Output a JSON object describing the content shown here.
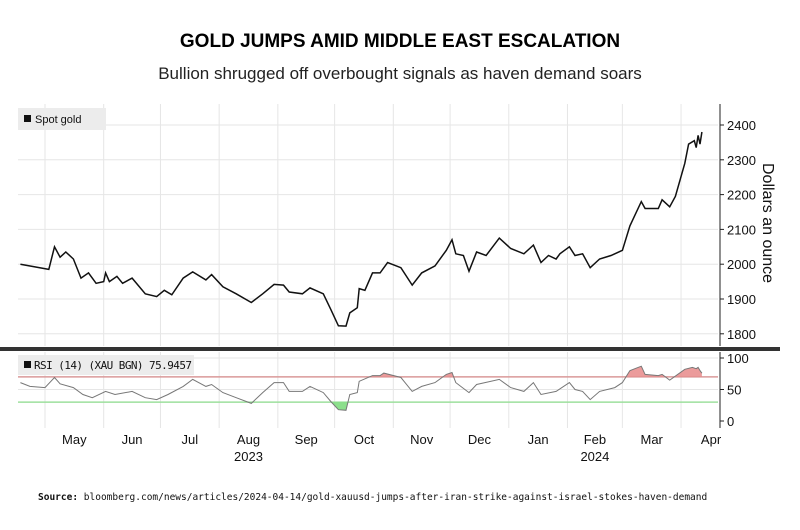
{
  "title": "GOLD JUMPS AMID MIDDLE EAST ESCALATION",
  "subtitle": "Bullion shrugged off overbought signals as haven demand soars",
  "source_label": "Source:",
  "source_text": "bloomberg.com/news/articles/2024-04-14/gold-xauusd-jumps-after-iran-strike-against-israel-stokes-haven-demand",
  "colors": {
    "line": "#111111",
    "rsi_line": "#777777",
    "overbought": "#e88a8a",
    "oversold": "#7fdc7f",
    "grid": "#e6e6e6"
  },
  "chart_data": [
    {
      "type": "line",
      "legend": "Spot gold",
      "legend_placement": "top-left",
      "ylabel": "Dollars an ounce",
      "ylim": [
        1770,
        2460
      ],
      "yticks": [
        1800,
        1900,
        2000,
        2100,
        2200,
        2300,
        2400
      ],
      "grid": true,
      "series": [
        {
          "name": "Spot gold",
          "points": [
            [
              "2023-04-18",
              2000
            ],
            [
              "2023-05-03",
              1985
            ],
            [
              "2023-05-06",
              2050
            ],
            [
              "2023-05-09",
              2020
            ],
            [
              "2023-05-12",
              2035
            ],
            [
              "2023-05-16",
              2015
            ],
            [
              "2023-05-20",
              1960
            ],
            [
              "2023-05-24",
              1975
            ],
            [
              "2023-05-28",
              1945
            ],
            [
              "2023-06-01",
              1950
            ],
            [
              "2023-06-02",
              1975
            ],
            [
              "2023-06-04",
              1950
            ],
            [
              "2023-06-08",
              1965
            ],
            [
              "2023-06-11",
              1945
            ],
            [
              "2023-06-16",
              1960
            ],
            [
              "2023-06-23",
              1915
            ],
            [
              "2023-06-29",
              1907
            ],
            [
              "2023-07-03",
              1925
            ],
            [
              "2023-07-07",
              1912
            ],
            [
              "2023-07-13",
              1960
            ],
            [
              "2023-07-18",
              1978
            ],
            [
              "2023-07-25",
              1955
            ],
            [
              "2023-07-28",
              1970
            ],
            [
              "2023-08-03",
              1935
            ],
            [
              "2023-08-10",
              1915
            ],
            [
              "2023-08-18",
              1890
            ],
            [
              "2023-08-24",
              1915
            ],
            [
              "2023-08-30",
              1942
            ],
            [
              "2023-09-04",
              1940
            ],
            [
              "2023-09-07",
              1920
            ],
            [
              "2023-09-14",
              1915
            ],
            [
              "2023-09-18",
              1932
            ],
            [
              "2023-09-25",
              1915
            ],
            [
              "2023-09-29",
              1870
            ],
            [
              "2023-10-03",
              1823
            ],
            [
              "2023-10-07",
              1822
            ],
            [
              "2023-10-09",
              1860
            ],
            [
              "2023-10-13",
              1875
            ],
            [
              "2023-10-14",
              1930
            ],
            [
              "2023-10-17",
              1925
            ],
            [
              "2023-10-21",
              1975
            ],
            [
              "2023-10-25",
              1975
            ],
            [
              "2023-10-29",
              2005
            ],
            [
              "2023-11-05",
              1990
            ],
            [
              "2023-11-11",
              1940
            ],
            [
              "2023-11-16",
              1975
            ],
            [
              "2023-11-23",
              1995
            ],
            [
              "2023-11-29",
              2040
            ],
            [
              "2023-12-02",
              2070
            ],
            [
              "2023-12-04",
              2030
            ],
            [
              "2023-12-08",
              2025
            ],
            [
              "2023-12-11",
              1980
            ],
            [
              "2023-12-15",
              2035
            ],
            [
              "2023-12-20",
              2025
            ],
            [
              "2023-12-27",
              2075
            ],
            [
              "2024-01-02",
              2045
            ],
            [
              "2024-01-09",
              2030
            ],
            [
              "2024-01-14",
              2055
            ],
            [
              "2024-01-18",
              2005
            ],
            [
              "2024-01-22",
              2025
            ],
            [
              "2024-01-26",
              2015
            ],
            [
              "2024-01-28",
              2030
            ],
            [
              "2024-02-02",
              2050
            ],
            [
              "2024-02-05",
              2025
            ],
            [
              "2024-02-09",
              2030
            ],
            [
              "2024-02-13",
              1990
            ],
            [
              "2024-02-18",
              2015
            ],
            [
              "2024-02-24",
              2025
            ],
            [
              "2024-02-26",
              2030
            ],
            [
              "2024-03-01",
              2040
            ],
            [
              "2024-03-05",
              2110
            ],
            [
              "2024-03-11",
              2180
            ],
            [
              "2024-03-13",
              2160
            ],
            [
              "2024-03-20",
              2160
            ],
            [
              "2024-03-22",
              2185
            ],
            [
              "2024-03-26",
              2165
            ],
            [
              "2024-03-29",
              2195
            ],
            [
              "2024-04-03",
              2290
            ],
            [
              "2024-04-05",
              2345
            ],
            [
              "2024-04-08",
              2355
            ],
            [
              "2024-04-09",
              2335
            ],
            [
              "2024-04-10",
              2370
            ],
            [
              "2024-04-11",
              2345
            ],
            [
              "2024-04-12",
              2380
            ]
          ]
        }
      ]
    },
    {
      "type": "line",
      "legend": "RSI (14) (XAU BGN) 75.9457",
      "legend_placement": "top-left",
      "ylim": [
        -8,
        108
      ],
      "yticks": [
        0,
        50,
        100
      ],
      "thresholds": {
        "overbought": 70,
        "oversold": 30
      },
      "xticks": [
        "May",
        "Jun",
        "Jul",
        "Aug",
        "Sep",
        "Oct",
        "Nov",
        "Dec",
        "Jan",
        "Feb",
        "Mar",
        "Apr"
      ],
      "xtick_dates": [
        "2023-05-01",
        "2023-06-01",
        "2023-07-01",
        "2023-08-01",
        "2023-09-01",
        "2023-10-01",
        "2023-11-01",
        "2023-12-01",
        "2024-01-01",
        "2024-02-01",
        "2024-03-01",
        "2024-04-01"
      ],
      "year_labels": [
        {
          "label": "2023",
          "under": "Aug"
        },
        {
          "label": "2024",
          "under": "Feb"
        }
      ],
      "series": [
        {
          "name": "RSI (14) (XAU BGN)",
          "points": [
            [
              "2023-04-18",
              61
            ],
            [
              "2023-04-23",
              55
            ],
            [
              "2023-05-01",
              53
            ],
            [
              "2023-05-06",
              69
            ],
            [
              "2023-05-09",
              59
            ],
            [
              "2023-05-16",
              53
            ],
            [
              "2023-05-21",
              42
            ],
            [
              "2023-05-26",
              37
            ],
            [
              "2023-06-02",
              47
            ],
            [
              "2023-06-07",
              42
            ],
            [
              "2023-06-16",
              47
            ],
            [
              "2023-06-23",
              37
            ],
            [
              "2023-06-29",
              34
            ],
            [
              "2023-07-05",
              42
            ],
            [
              "2023-07-13",
              55
            ],
            [
              "2023-07-18",
              66
            ],
            [
              "2023-07-25",
              55
            ],
            [
              "2023-07-28",
              58
            ],
            [
              "2023-08-03",
              45
            ],
            [
              "2023-08-10",
              37
            ],
            [
              "2023-08-18",
              28
            ],
            [
              "2023-08-24",
              45
            ],
            [
              "2023-08-30",
              61
            ],
            [
              "2023-09-04",
              61
            ],
            [
              "2023-09-07",
              47
            ],
            [
              "2023-09-14",
              47
            ],
            [
              "2023-09-18",
              55
            ],
            [
              "2023-09-25",
              45
            ],
            [
              "2023-09-29",
              31
            ],
            [
              "2023-10-03",
              18
            ],
            [
              "2023-10-07",
              17
            ],
            [
              "2023-10-09",
              42
            ],
            [
              "2023-10-13",
              45
            ],
            [
              "2023-10-14",
              63
            ],
            [
              "2023-10-21",
              72
            ],
            [
              "2023-10-25",
              72
            ],
            [
              "2023-10-27",
              76
            ],
            [
              "2023-11-05",
              69
            ],
            [
              "2023-11-11",
              47
            ],
            [
              "2023-11-16",
              55
            ],
            [
              "2023-11-23",
              61
            ],
            [
              "2023-11-29",
              74
            ],
            [
              "2023-12-02",
              77
            ],
            [
              "2023-12-04",
              61
            ],
            [
              "2023-12-11",
              45
            ],
            [
              "2023-12-15",
              58
            ],
            [
              "2023-12-27",
              66
            ],
            [
              "2024-01-02",
              53
            ],
            [
              "2024-01-09",
              47
            ],
            [
              "2024-01-14",
              61
            ],
            [
              "2024-01-18",
              42
            ],
            [
              "2024-01-26",
              47
            ],
            [
              "2024-02-02",
              61
            ],
            [
              "2024-02-05",
              50
            ],
            [
              "2024-02-09",
              47
            ],
            [
              "2024-02-13",
              34
            ],
            [
              "2024-02-18",
              47
            ],
            [
              "2024-02-26",
              53
            ],
            [
              "2024-03-01",
              61
            ],
            [
              "2024-03-05",
              80
            ],
            [
              "2024-03-11",
              87
            ],
            [
              "2024-03-13",
              74
            ],
            [
              "2024-03-20",
              72
            ],
            [
              "2024-03-22",
              74
            ],
            [
              "2024-03-26",
              65
            ],
            [
              "2024-04-03",
              82
            ],
            [
              "2024-04-07",
              85
            ],
            [
              "2024-04-09",
              83
            ],
            [
              "2024-04-10",
              85
            ],
            [
              "2024-04-11",
              80
            ],
            [
              "2024-04-12",
              75.9457
            ]
          ]
        }
      ]
    }
  ]
}
